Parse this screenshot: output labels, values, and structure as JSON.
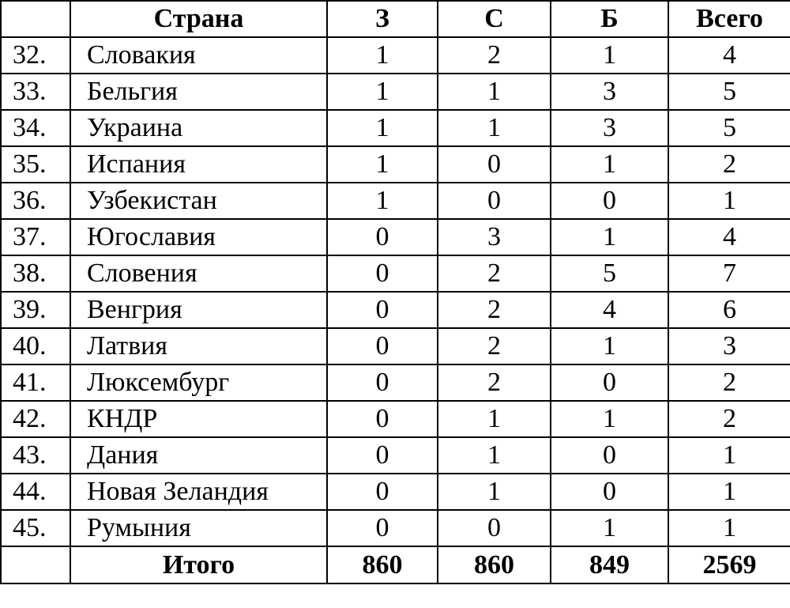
{
  "table": {
    "headers": {
      "num": "",
      "country": "Страна",
      "gold": "З",
      "silver": "С",
      "bronze": "Б",
      "total": "Всего"
    },
    "rows": [
      {
        "num": "32.",
        "country": "Словакия",
        "gold": "1",
        "silver": "2",
        "bronze": "1",
        "total": "4"
      },
      {
        "num": "33.",
        "country": "Бельгия",
        "gold": "1",
        "silver": "1",
        "bronze": "3",
        "total": "5"
      },
      {
        "num": "34.",
        "country": "Украина",
        "gold": "1",
        "silver": "1",
        "bronze": "3",
        "total": "5"
      },
      {
        "num": "35.",
        "country": "Испания",
        "gold": "1",
        "silver": "0",
        "bronze": "1",
        "total": "2"
      },
      {
        "num": "36.",
        "country": "Узбекистан",
        "gold": "1",
        "silver": "0",
        "bronze": "0",
        "total": "1"
      },
      {
        "num": "37.",
        "country": "Югославия",
        "gold": "0",
        "silver": "3",
        "bronze": "1",
        "total": "4"
      },
      {
        "num": "38.",
        "country": "Словения",
        "gold": "0",
        "silver": "2",
        "bronze": "5",
        "total": "7"
      },
      {
        "num": "39.",
        "country": "Венгрия",
        "gold": "0",
        "silver": "2",
        "bronze": "4",
        "total": "6"
      },
      {
        "num": "40.",
        "country": "Латвия",
        "gold": "0",
        "silver": "2",
        "bronze": "1",
        "total": "3"
      },
      {
        "num": "41.",
        "country": "Люксембург",
        "gold": "0",
        "silver": "2",
        "bronze": "0",
        "total": "2"
      },
      {
        "num": "42.",
        "country": "КНДР",
        "gold": "0",
        "silver": "1",
        "bronze": "1",
        "total": "2"
      },
      {
        "num": "43.",
        "country": "Дания",
        "gold": "0",
        "silver": "1",
        "bronze": "0",
        "total": "1"
      },
      {
        "num": "44.",
        "country": "Новая Зеландия",
        "gold": "0",
        "silver": "1",
        "bronze": "0",
        "total": "1"
      },
      {
        "num": "45.",
        "country": "Румыния",
        "gold": "0",
        "silver": "0",
        "bronze": "1",
        "total": "1"
      }
    ],
    "totals": {
      "num": "",
      "label": "Итого",
      "gold": "860",
      "silver": "860",
      "bronze": "849",
      "total": "2569"
    }
  }
}
